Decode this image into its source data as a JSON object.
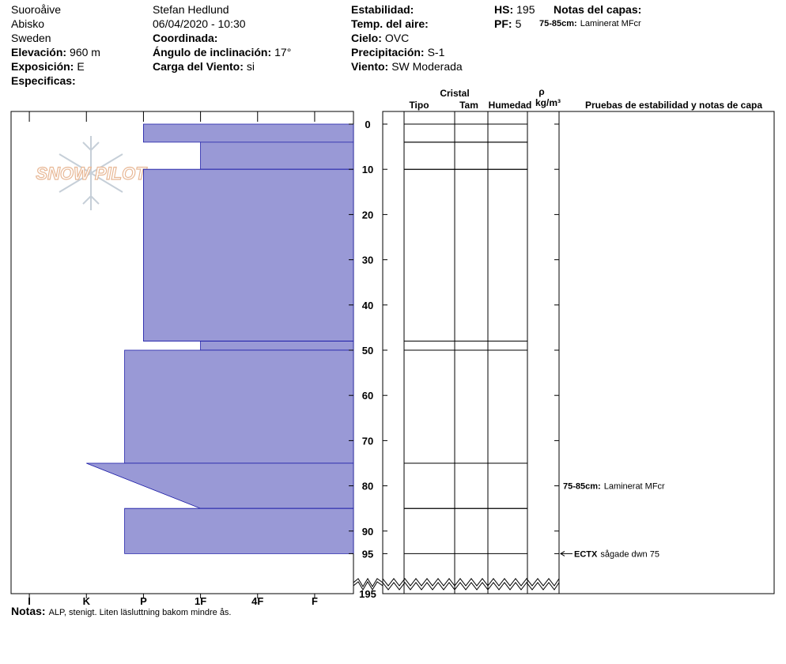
{
  "header": {
    "columns": [
      [
        {
          "value": "Suoroåive"
        },
        {
          "value": "Abisko"
        },
        {
          "value": "Sweden"
        },
        {
          "label": "Elevación:",
          "value": "960 m"
        },
        {
          "label": "Exposición:",
          "value": "E"
        },
        {
          "label": "Especificas:"
        }
      ],
      [
        {
          "value": "Stefan Hedlund"
        },
        {
          "value": "06/04/2020 - 10:30"
        },
        {
          "label": "Coordinada:"
        },
        {
          "label": "Ángulo de inclinación:",
          "value": "17°"
        },
        {
          "label": "Carga del Viento:",
          "value": "si"
        }
      ],
      [
        {
          "label": "Estabilidad:"
        },
        {
          "label": "Temp. del aire:"
        },
        {
          "label": "Cielo:",
          "value": "OVC"
        },
        {
          "label": "Precipitación:",
          "value": "S-1"
        },
        {
          "label": "Viento:",
          "value": "SW Moderada"
        }
      ],
      [
        {
          "label": "HS:",
          "value": "195"
        },
        {
          "label": "PF:",
          "value": "5"
        }
      ],
      [
        {
          "label": "Notas del capas:"
        },
        {
          "label": "75-85cm:",
          "value": "Laminerat MFcr"
        }
      ]
    ]
  },
  "watermark": "SNOW PILOT",
  "chart_data": {
    "type": "snow-profile",
    "xlim": [
      0.68,
      6.68
    ],
    "xticks": [
      {
        "value": 1,
        "label": "I"
      },
      {
        "value": 2,
        "label": "K"
      },
      {
        "value": 3,
        "label": "P"
      },
      {
        "value": 4,
        "label": "1F"
      },
      {
        "value": 5,
        "label": "4F"
      },
      {
        "value": 6,
        "label": "F"
      }
    ],
    "ylim": [
      0,
      95
    ],
    "yticks": [
      0,
      10,
      20,
      30,
      40,
      50,
      60,
      70,
      80,
      90,
      95
    ],
    "depth_break": 195,
    "color": "#9999d6",
    "layers": [
      {
        "top": 0,
        "bottom": 4,
        "hardness": [
          3,
          3
        ]
      },
      {
        "top": 4,
        "bottom": 10,
        "hardness": [
          4,
          4
        ]
      },
      {
        "top": 10,
        "bottom": 48,
        "hardness": [
          3,
          3
        ]
      },
      {
        "top": 48,
        "bottom": 50,
        "hardness": [
          4,
          4
        ]
      },
      {
        "top": 50,
        "bottom": 75,
        "hardness": [
          2.67,
          2.67
        ]
      },
      {
        "top": 75,
        "bottom": 85,
        "hardness": [
          2,
          4
        ]
      },
      {
        "top": 85,
        "bottom": 95,
        "hardness": [
          2.67,
          2.67
        ]
      }
    ],
    "columns": {
      "crystal": "Cristal",
      "type": "Tipo",
      "size": "Tam",
      "moisture": "Humedad",
      "rho": "ρ",
      "density_unit": "kg/m³",
      "tests": "Pruebas de estabilidad y notas de capa"
    },
    "layer_notes": [
      {
        "top": 75,
        "bottom": 85,
        "label": "75-85cm:",
        "text": "Laminerat MFcr"
      }
    ],
    "tests": [
      {
        "depth": 95,
        "label": "ECTX",
        "text": "sågade dwn 75"
      }
    ]
  },
  "notes": {
    "label": "Notas:",
    "text": "ALP, stenigt. Liten läsluttning bakom mindre ås."
  }
}
